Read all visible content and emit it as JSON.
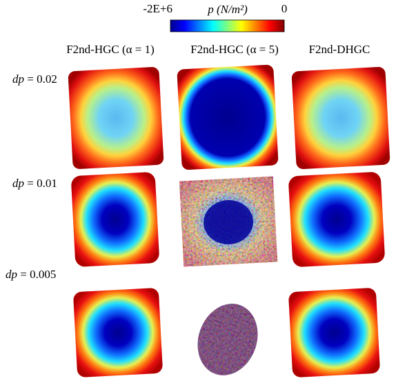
{
  "colorbar": {
    "label": "p (N/m²)",
    "min": "-2E+6",
    "max": "0"
  },
  "columns": [
    "F2nd-HGC (α = 1)",
    "F2nd-HGC (α = 5)",
    "F2nd-DHGC"
  ],
  "rows": [
    {
      "symbol": "dp",
      "value": "= 0.02"
    },
    {
      "symbol": "dp",
      "value": "= 0.01"
    },
    {
      "symbol": "dp",
      "value": "= 0.005"
    }
  ]
}
